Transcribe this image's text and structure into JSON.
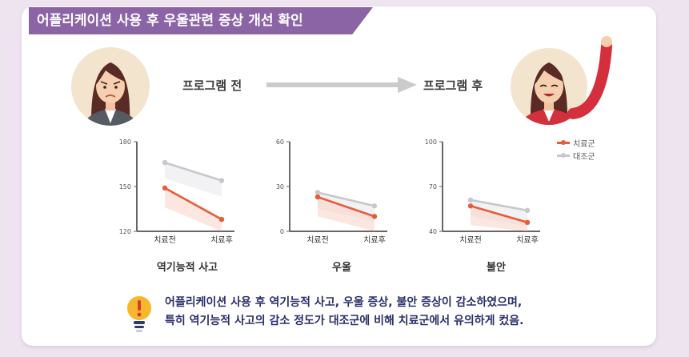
{
  "title": "어플리케이션 사용 후 우울관련 증상 개선 확인",
  "before_label": "프로그램 전",
  "after_label": "프로그램 후",
  "legend": {
    "treatment": "치료군",
    "control": "대조군"
  },
  "colors": {
    "banner": "#8b64a6",
    "treatment": "#ea5b3a",
    "control": "#c8c8cc",
    "note_text": "#2a2f6b"
  },
  "note_lines": [
    "어플리케이션 사용 후 역기능적 사고, 우울 증상, 불안 증상이 감소하였으며,",
    "특히 역기능적 사고의 감소 정도가 대조군에 비해 치료군에서 유의하게 컸음."
  ],
  "chart_data": [
    {
      "type": "line",
      "title": "역기능적 사고",
      "categories": [
        "치료전",
        "치료후"
      ],
      "ylim": [
        120,
        180
      ],
      "yticks": [
        120,
        150,
        180
      ],
      "series": [
        {
          "name": "치료군",
          "values": [
            149,
            128
          ]
        },
        {
          "name": "대조군",
          "values": [
            166,
            154
          ]
        }
      ]
    },
    {
      "type": "line",
      "title": "우울",
      "categories": [
        "치료전",
        "치료후"
      ],
      "ylim": [
        0,
        60
      ],
      "yticks": [
        0,
        30,
        60
      ],
      "series": [
        {
          "name": "치료군",
          "values": [
            23,
            10
          ]
        },
        {
          "name": "대조군",
          "values": [
            26,
            17
          ]
        }
      ]
    },
    {
      "type": "line",
      "title": "불안",
      "categories": [
        "치료전",
        "치료후"
      ],
      "ylim": [
        40,
        100
      ],
      "yticks": [
        40,
        70,
        100
      ],
      "series": [
        {
          "name": "치료군",
          "values": [
            57,
            46
          ]
        },
        {
          "name": "대조군",
          "values": [
            61,
            54
          ]
        }
      ]
    }
  ]
}
